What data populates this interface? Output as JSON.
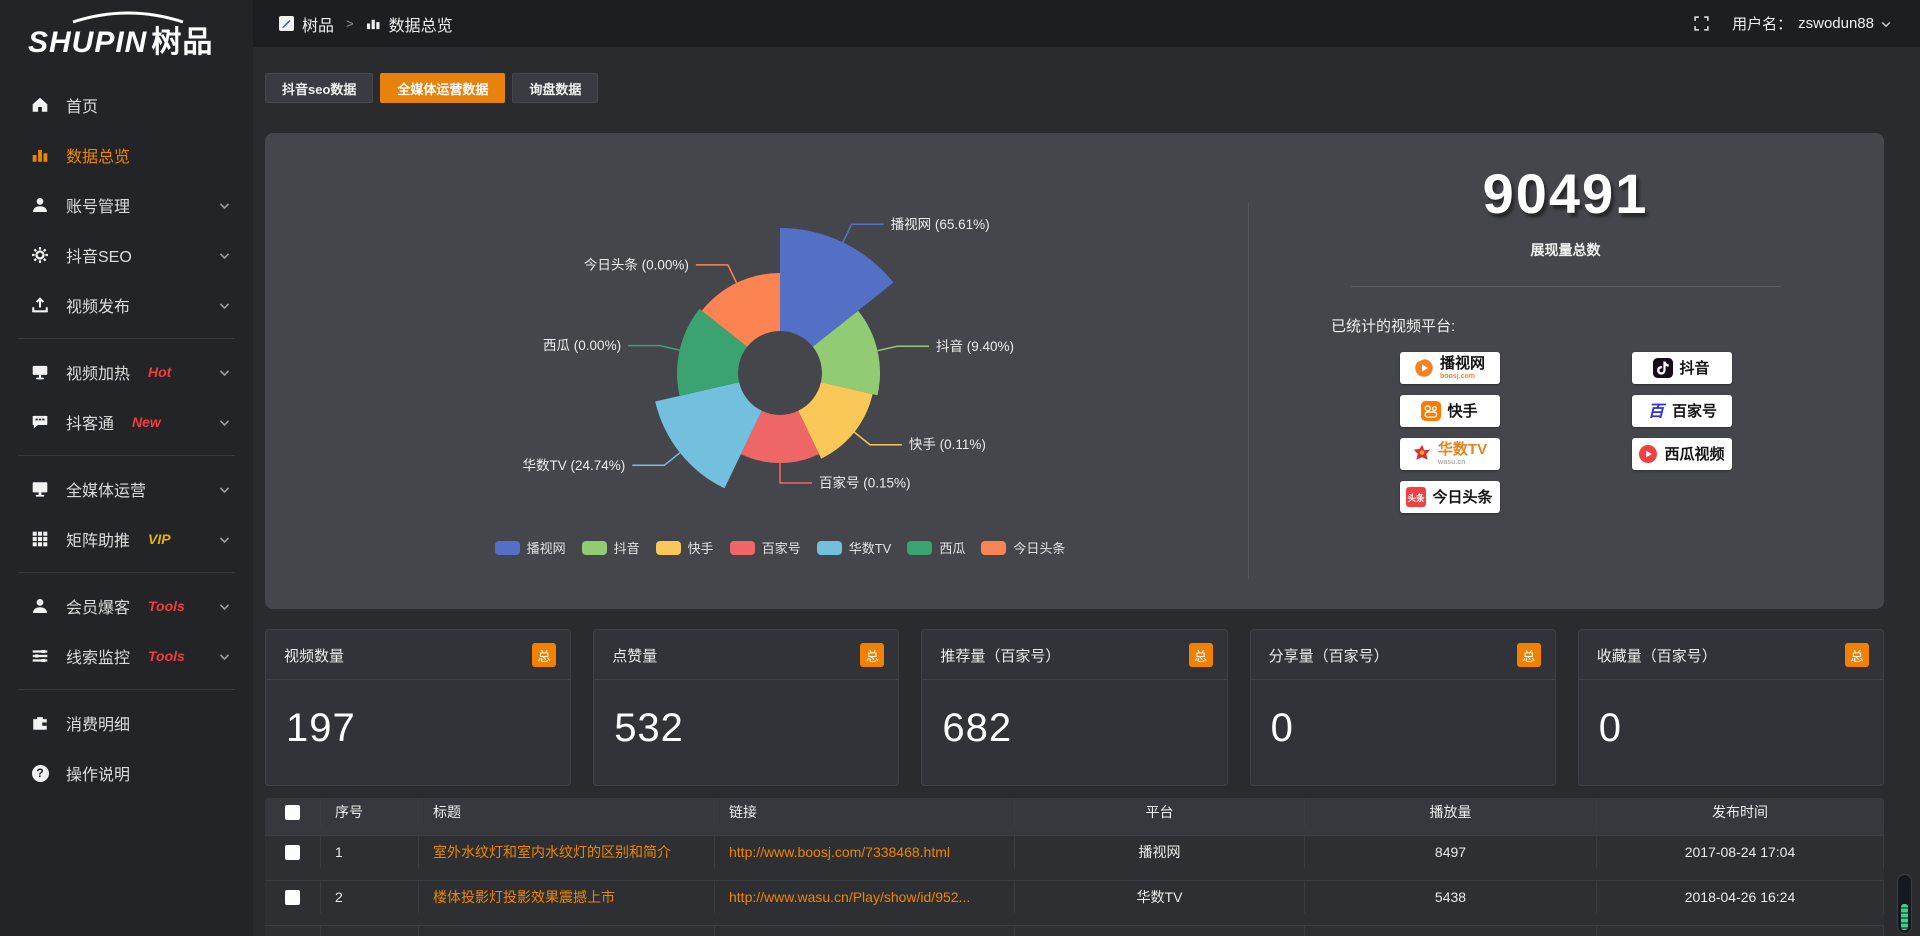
{
  "app": {
    "logo_en": "SHUPIN",
    "logo_cn": "树品"
  },
  "topbar": {
    "breadcrumb": {
      "items": [
        {
          "label": "树品"
        },
        {
          "label": "数据总览"
        }
      ],
      "separator": ">"
    },
    "username_label": "用户名：",
    "username": "zswodun88"
  },
  "sidebar": {
    "items": [
      {
        "label": "首页",
        "icon": "home"
      },
      {
        "label": "数据总览",
        "icon": "bar-chart",
        "active": true
      },
      {
        "label": "账号管理",
        "icon": "user",
        "chevron": true
      },
      {
        "label": "抖音SEO",
        "icon": "gear",
        "chevron": true
      },
      {
        "label": "视频发布",
        "icon": "upload",
        "chevron": true,
        "divider_after": true
      },
      {
        "label": "视频加热",
        "icon": "screen",
        "badge": "Hot",
        "badge_color": "#f23c3c",
        "chevron": true
      },
      {
        "label": "抖客通",
        "icon": "chat",
        "badge": "New",
        "badge_color": "#f23c3c",
        "chevron": true,
        "divider_after": true
      },
      {
        "label": "全媒体运营",
        "icon": "monitor",
        "chevron": true
      },
      {
        "label": "矩阵助推",
        "icon": "grid",
        "badge": "VIP",
        "badge_color": "#e6b100",
        "chevron": true,
        "divider_after": true
      },
      {
        "label": "会员爆客",
        "icon": "user",
        "badge": "Tools",
        "badge_color": "#f23c3c",
        "chevron": true
      },
      {
        "label": "线索监控",
        "icon": "sliders",
        "badge": "Tools",
        "badge_color": "#f23c3c",
        "chevron": true,
        "divider_after": true
      },
      {
        "label": "消费明细",
        "icon": "wallet"
      },
      {
        "label": "操作说明",
        "icon": "question"
      }
    ]
  },
  "tabs": [
    {
      "label": "抖音seo数据",
      "active": false
    },
    {
      "label": "全媒体运营数据",
      "active": true
    },
    {
      "label": "询盘数据",
      "active": false
    }
  ],
  "chart_data": {
    "type": "pie",
    "subtype": "nightingale-rose",
    "labels": [
      "播视网",
      "抖音",
      "快手",
      "百家号",
      "华数TV",
      "西瓜",
      "今日头条"
    ],
    "values": [
      65.61,
      9.4,
      0.11,
      0.15,
      24.74,
      0.0,
      0.0
    ],
    "pct_labels": [
      "65.61%",
      "9.40%",
      "0.11%",
      "0.15%",
      "24.74%",
      "0.00%",
      "0.00%"
    ],
    "colors": [
      "#5470c6",
      "#91cc75",
      "#fac858",
      "#ee6666",
      "#73c0de",
      "#3ba272",
      "#fc8452"
    ],
    "legend_position": "bottom",
    "inner_radius": 42,
    "slice_radii": [
      145,
      100,
      95,
      90,
      128,
      103,
      100
    ]
  },
  "summary": {
    "total_value": "90491",
    "total_label": "展现量总数",
    "platforms_label": "已统计的视频平台:",
    "platform_columns": [
      [
        {
          "name": "播视网",
          "sub": "boosj.com",
          "sub_color": "#f6821f",
          "icon": "boosj"
        },
        {
          "name": "快手",
          "icon": "kuaishou"
        },
        {
          "name": "华数TV",
          "name_color": "#e8821e",
          "sub": "wasu.cn",
          "sub_color": "#b0b0b0",
          "icon": "wasu"
        },
        {
          "name": "今日头条",
          "icon": "toutiao"
        }
      ],
      [
        {
          "name": "抖音",
          "icon": "douyin"
        },
        {
          "name": "百家号",
          "icon": "baijiahao"
        },
        {
          "name": "西瓜视频",
          "icon": "xigua"
        }
      ]
    ]
  },
  "stat_cards": [
    {
      "title": "视频数量",
      "badge": "总",
      "value": "197"
    },
    {
      "title": "点赞量",
      "badge": "总",
      "value": "532"
    },
    {
      "title": "推荐量（百家号）",
      "badge": "总",
      "value": "682"
    },
    {
      "title": "分享量（百家号）",
      "badge": "总",
      "value": "0"
    },
    {
      "title": "收藏量（百家号）",
      "badge": "总",
      "value": "0"
    }
  ],
  "table": {
    "headers": [
      "序号",
      "标题",
      "链接",
      "平台",
      "播放量",
      "发布时间"
    ],
    "rows": [
      {
        "seq": "1",
        "title": "室外水纹灯和室内水纹灯的区别和简介",
        "link": "http://www.boosj.com/7338468.html",
        "platform": "播视网",
        "views": "8497",
        "time": "2017-08-24 17:04"
      },
      {
        "seq": "2",
        "title": "楼体投影灯投影效果震撼上市",
        "link": "http://www.wasu.cn/Play/show/id/952...",
        "platform": "华数TV",
        "views": "5438",
        "time": "2018-04-26 16:24"
      }
    ]
  }
}
